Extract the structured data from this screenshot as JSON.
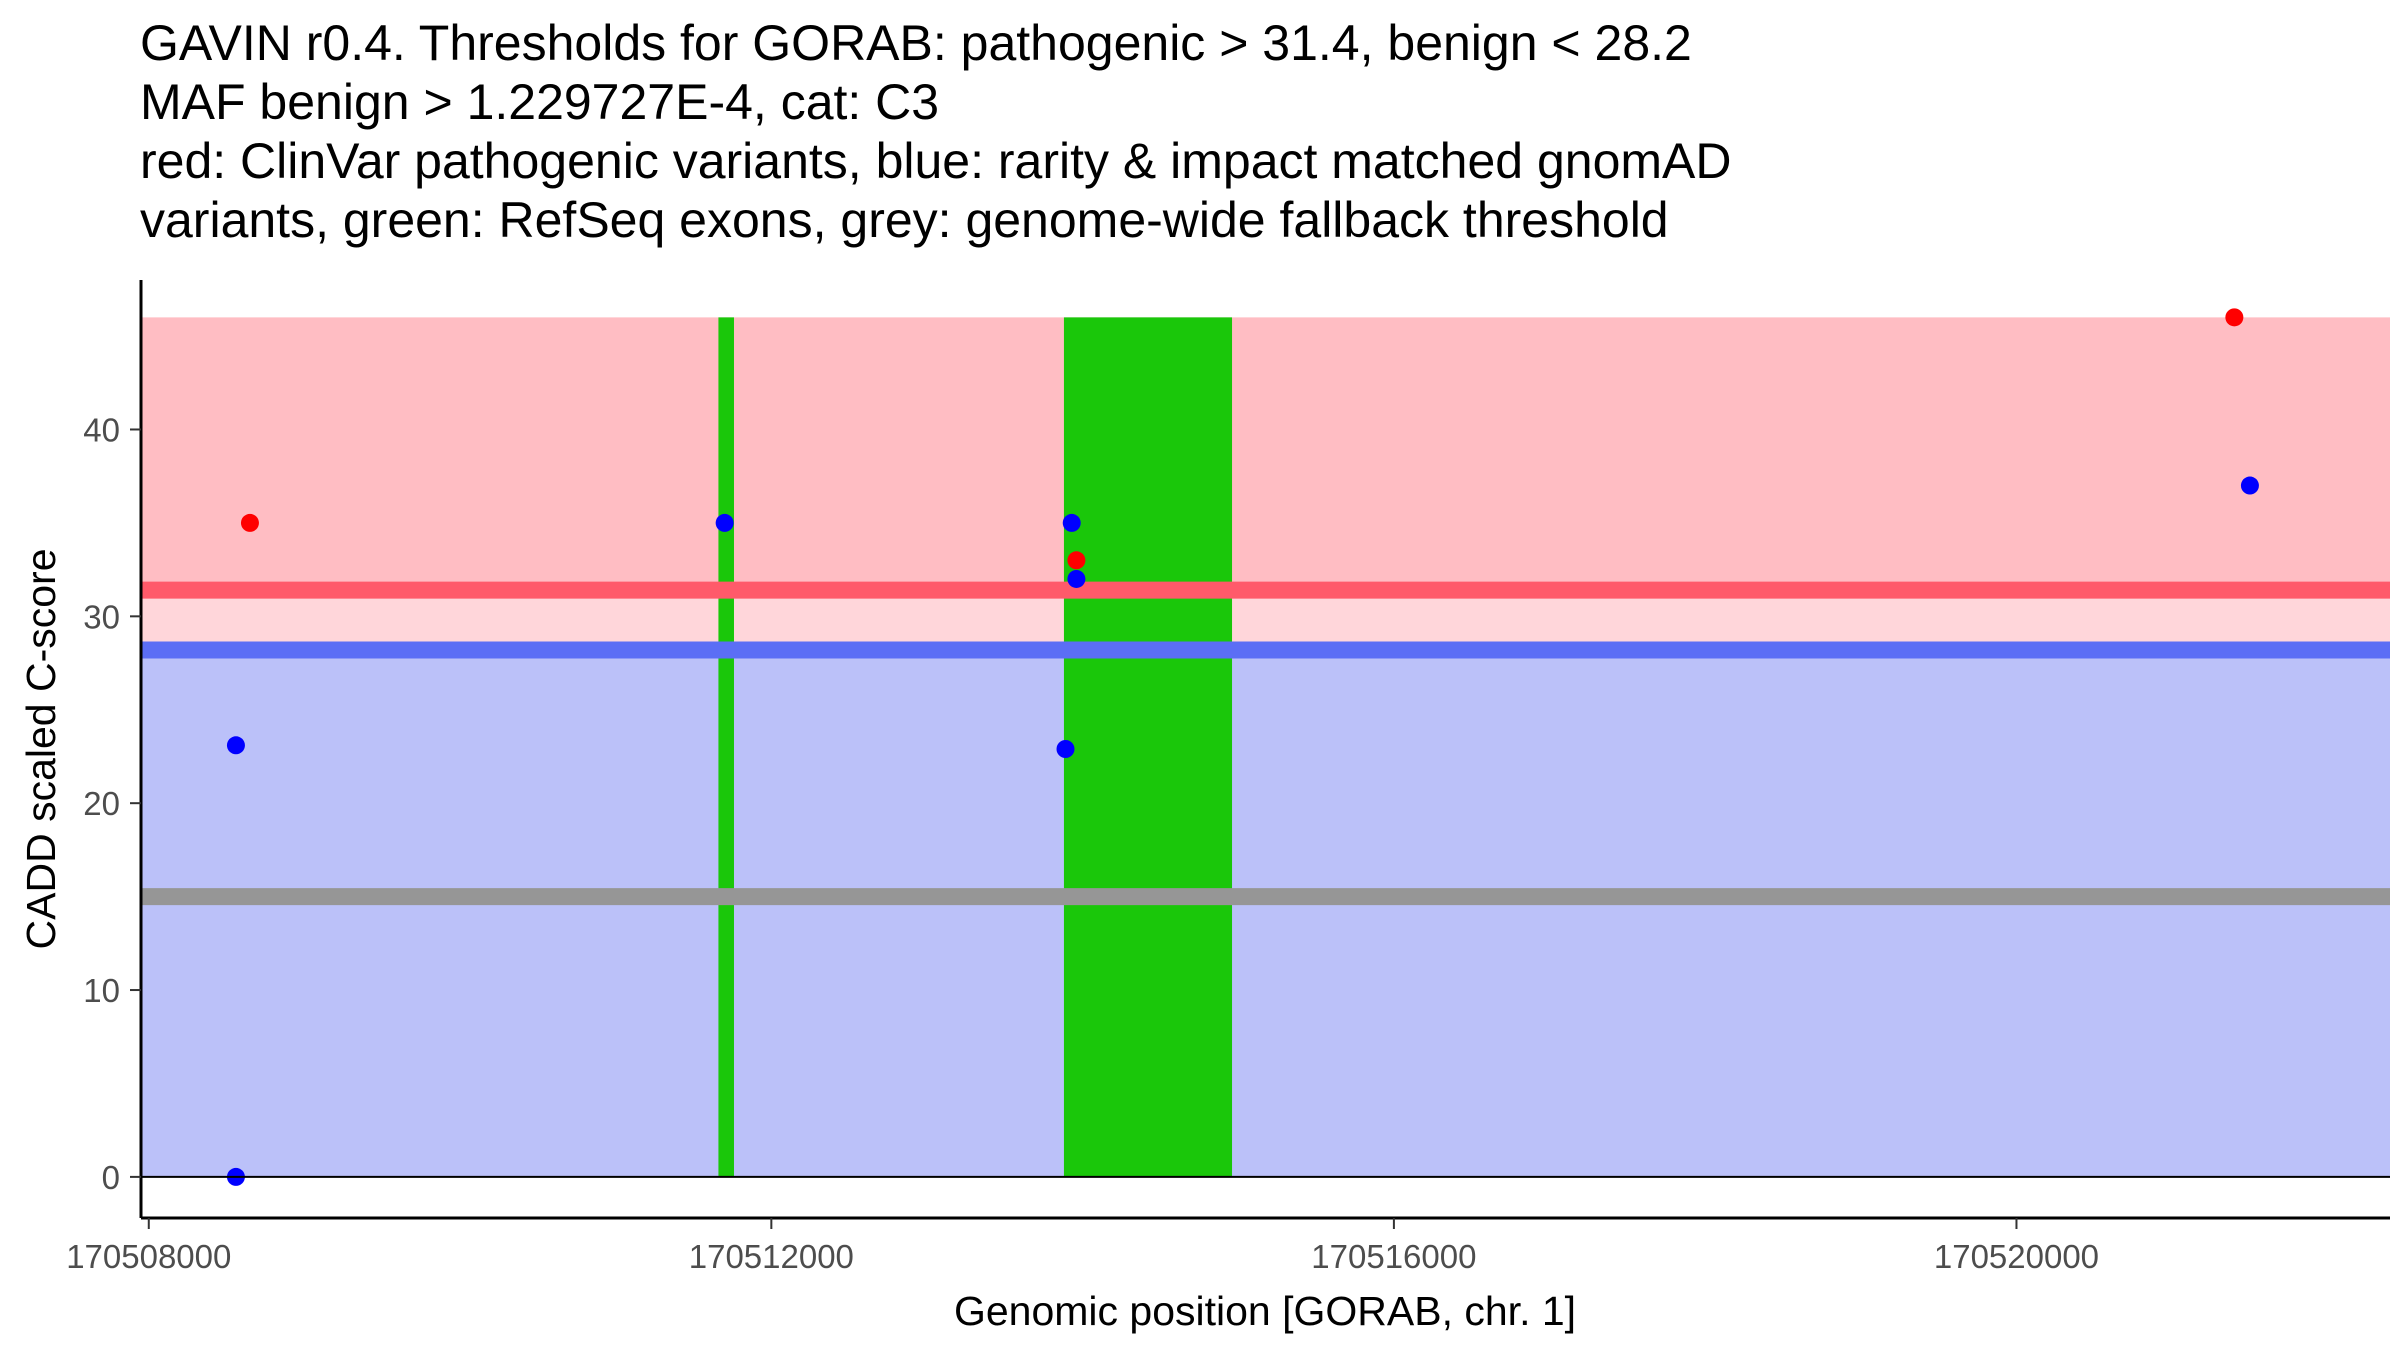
{
  "chart_data": {
    "type": "scatter",
    "title_lines": [
      "GAVIN r0.4. Thresholds for GORAB: pathogenic > 31.4, benign < 28.2",
      "MAF benign > 1.229727E-4, cat: C3",
      "red: ClinVar pathogenic variants, blue: rarity & impact matched gnomAD",
      "variants, green: RefSeq exons, grey: genome-wide fallback threshold"
    ],
    "xlabel": "Genomic position [GORAB, chr. 1]",
    "ylabel": "CADD scaled C-score",
    "xlim": [
      170507950,
      170522400
    ],
    "ylim": [
      -2.2,
      48
    ],
    "x_ticks": [
      170508000,
      170512000,
      170516000,
      170520000
    ],
    "x_tick_labels": [
      "170508000",
      "170512000",
      "170516000",
      "170520000"
    ],
    "y_ticks": [
      0,
      10,
      20,
      30,
      40
    ],
    "y_tick_labels": [
      "0",
      "10",
      "20",
      "30",
      "40"
    ],
    "regions": {
      "pathogenic_zone": {
        "y_from": 31.4,
        "y_to": 46,
        "color": "#ffbdc3"
      },
      "benign_zone": {
        "y_from": 0,
        "y_to": 28.2,
        "color": "#bbc1f9"
      },
      "between_zone": {
        "y_from": 28.2,
        "y_to": 31.4,
        "color": "#ffd6da"
      }
    },
    "threshold_lines": [
      {
        "name": "pathogenic threshold",
        "y": 31.4,
        "color": "#ff5a6a"
      },
      {
        "name": "benign threshold",
        "y": 28.2,
        "color": "#5b6ef5"
      },
      {
        "name": "genome-wide fallback threshold",
        "y": 15,
        "color": "#969696"
      }
    ],
    "exons": [
      {
        "start": 170511660,
        "end": 170511760,
        "color": "#1ac70a"
      },
      {
        "start": 170513880,
        "end": 170514960,
        "color": "#1ac70a"
      }
    ],
    "series": [
      {
        "name": "ClinVar pathogenic variants",
        "color": "#ff0000",
        "points": [
          {
            "x": 170508650,
            "y": 35
          },
          {
            "x": 170513960,
            "y": 33
          },
          {
            "x": 170521400,
            "y": 46
          }
        ]
      },
      {
        "name": "rarity & impact matched gnomAD variants",
        "color": "#0000ff",
        "points": [
          {
            "x": 170508560,
            "y": 23.1
          },
          {
            "x": 170508560,
            "y": 0
          },
          {
            "x": 170511700,
            "y": 35
          },
          {
            "x": 170513930,
            "y": 35
          },
          {
            "x": 170513960,
            "y": 32
          },
          {
            "x": 170513890,
            "y": 22.9
          },
          {
            "x": 170521500,
            "y": 37
          }
        ]
      }
    ]
  }
}
